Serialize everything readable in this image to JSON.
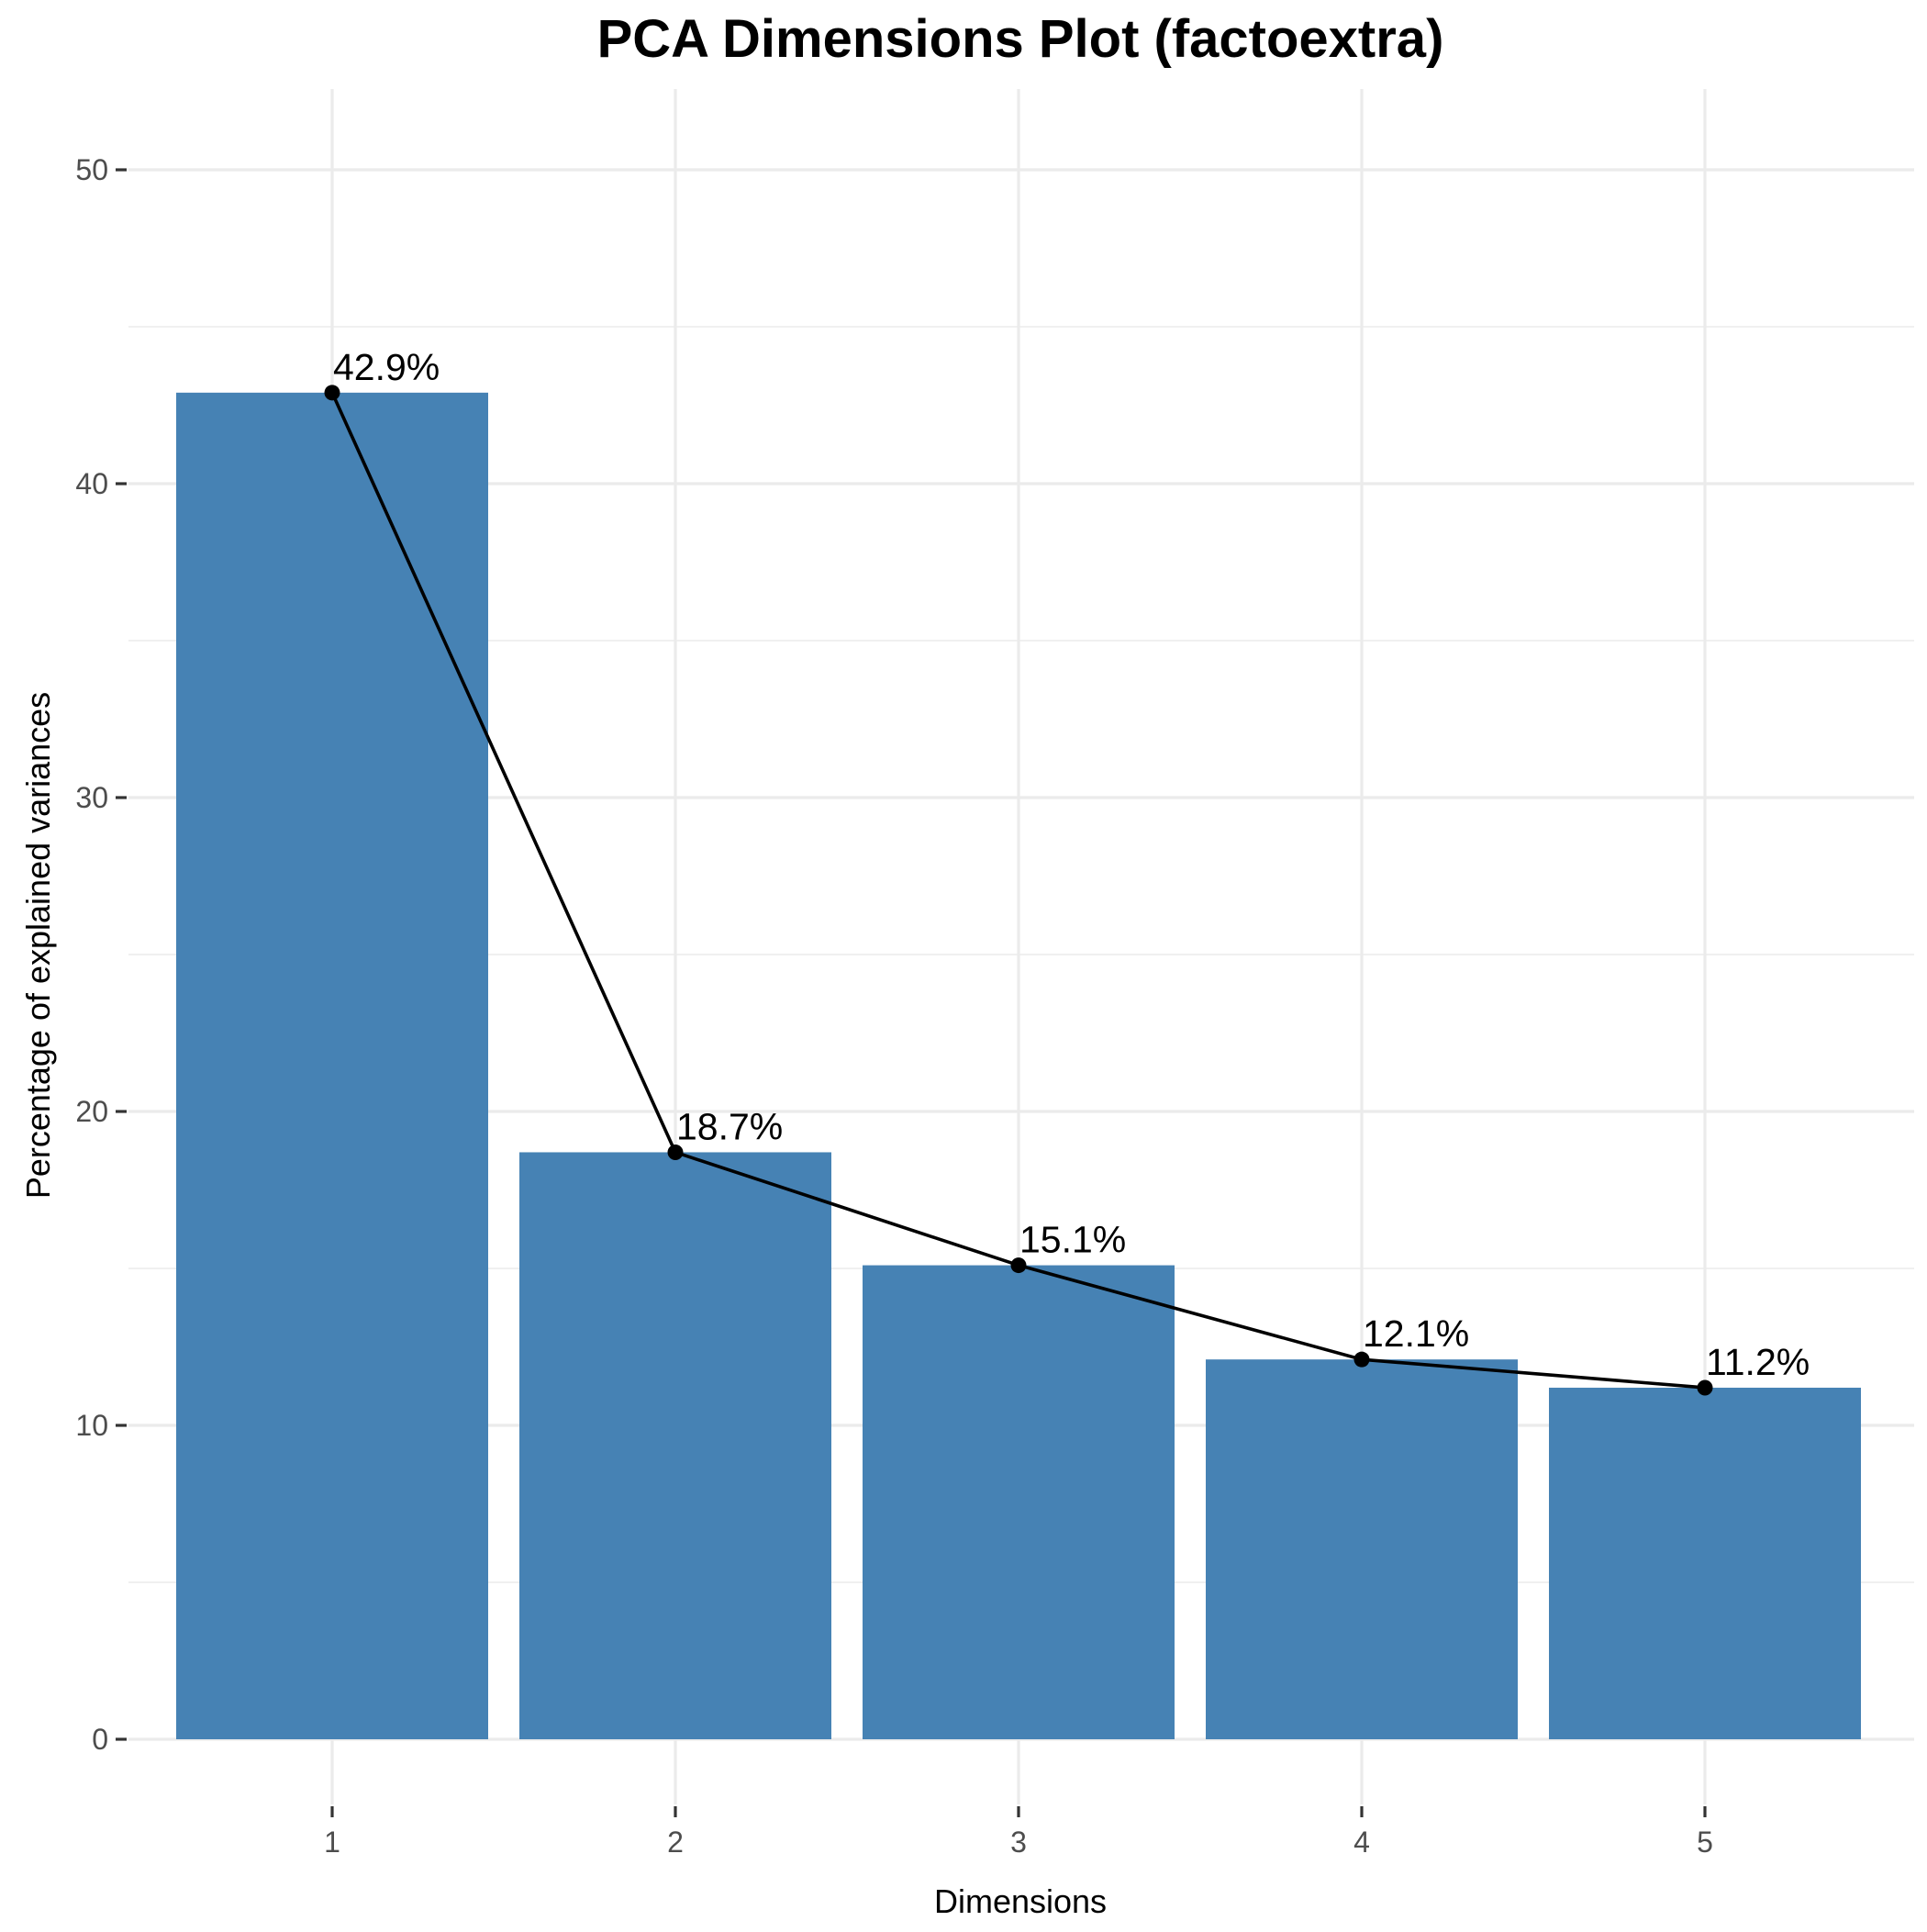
{
  "chart_data": {
    "type": "bar",
    "title": "PCA Dimensions Plot (factoextra)",
    "xlabel": "Dimensions",
    "ylabel": "Percentage of explained variances",
    "categories": [
      "1",
      "2",
      "3",
      "4",
      "5"
    ],
    "values": [
      42.9,
      18.7,
      15.1,
      12.1,
      11.2
    ],
    "data_labels": [
      "42.9%",
      "18.7%",
      "15.1%",
      "12.1%",
      "11.2%"
    ],
    "overlay_line": true,
    "ylim": [
      0,
      52.5
    ],
    "yticks": [
      0,
      10,
      20,
      30,
      40,
      50
    ],
    "ytick_labels": [
      "0",
      "10",
      "20",
      "30",
      "40",
      "50"
    ],
    "grid": true,
    "bar_color": "#4682b4",
    "line_color": "#000000"
  }
}
